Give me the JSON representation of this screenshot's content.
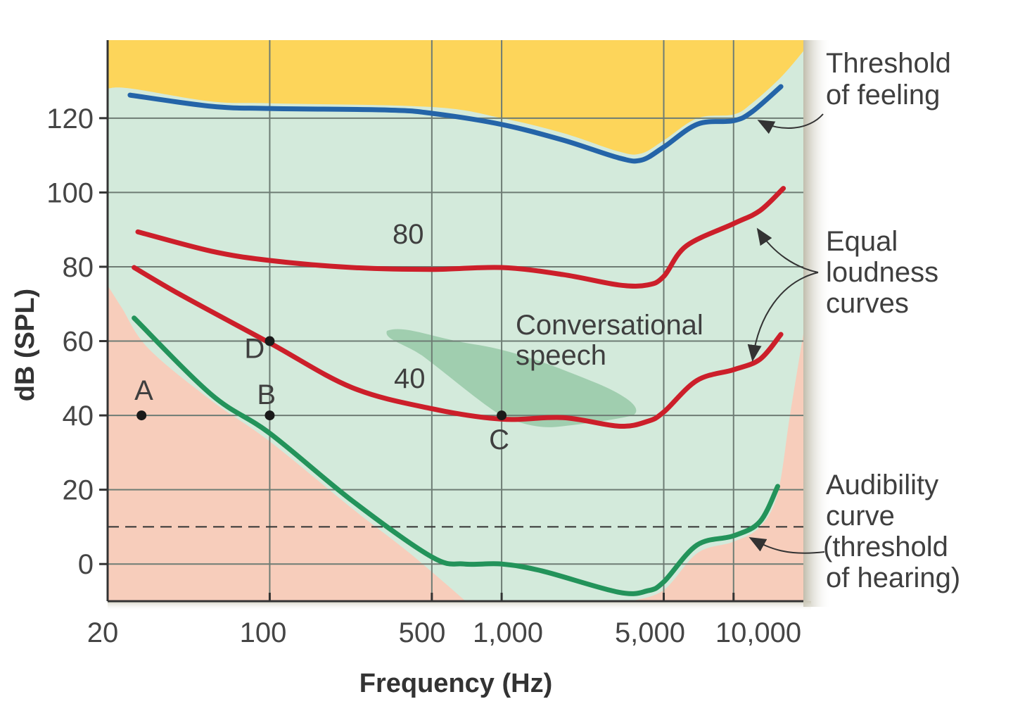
{
  "chart_data": {
    "type": "line",
    "xlabel": "Frequency (Hz)",
    "ylabel": "dB (SPL)",
    "xscale": "log",
    "xlim": [
      20,
      20000
    ],
    "ylim": [
      -10,
      141
    ],
    "grid": true,
    "x_ticks": [
      {
        "value": 20,
        "label": "20"
      },
      {
        "value": 100,
        "label": "100"
      },
      {
        "value": 500,
        "label": "500"
      },
      {
        "value": 1000,
        "label": "1,000"
      },
      {
        "value": 5000,
        "label": "5,000"
      },
      {
        "value": 10000,
        "label": "10,000"
      }
    ],
    "y_ticks": [
      {
        "value": 0,
        "label": "0"
      },
      {
        "value": 20,
        "label": "20"
      },
      {
        "value": 40,
        "label": "40"
      },
      {
        "value": 60,
        "label": "60"
      },
      {
        "value": 80,
        "label": "80"
      },
      {
        "value": 100,
        "label": "100"
      },
      {
        "value": 120,
        "label": "120"
      }
    ],
    "colors": {
      "feeling_region": "#FDD55A",
      "audible_region": "#D3EADB",
      "inaudible_region": "#F7CDBB",
      "speech_region": "#8FC4A0"
    },
    "series": [
      {
        "id": "threshold-of-feeling",
        "color": "#2464A8",
        "points": [
          [
            25,
            126.2
          ],
          [
            56,
            123.2
          ],
          [
            100,
            122.6
          ],
          [
            320,
            122.2
          ],
          [
            500,
            121.3
          ],
          [
            1000,
            118.3
          ],
          [
            1840,
            114.1
          ],
          [
            3200,
            109.3
          ],
          [
            4000,
            108.7
          ],
          [
            5000,
            112.2
          ],
          [
            7000,
            118.4
          ],
          [
            10000,
            119.3
          ],
          [
            12000,
            121.7
          ],
          [
            16000,
            128.5
          ]
        ]
      },
      {
        "id": "equal-loudness-80",
        "label": "80",
        "color": "#CC1F2A",
        "points": [
          [
            27,
            89.4
          ],
          [
            56,
            84.2
          ],
          [
            100,
            81.7
          ],
          [
            226,
            79.8
          ],
          [
            500,
            79.3
          ],
          [
            1000,
            79.8
          ],
          [
            1840,
            77.9
          ],
          [
            3200,
            75.1
          ],
          [
            4260,
            75.1
          ],
          [
            5000,
            77.4
          ],
          [
            6250,
            85.6
          ],
          [
            10000,
            91.6
          ],
          [
            13000,
            95.1
          ],
          [
            16400,
            101.1
          ]
        ]
      },
      {
        "id": "equal-loudness-40",
        "label": "40",
        "color": "#CC1F2A",
        "points": [
          [
            26,
            79.8
          ],
          [
            42,
            72.2
          ],
          [
            100,
            59.5
          ],
          [
            226,
            47.5
          ],
          [
            500,
            41.8
          ],
          [
            1000,
            39.0
          ],
          [
            1840,
            39.4
          ],
          [
            3200,
            37.1
          ],
          [
            4260,
            38.4
          ],
          [
            5000,
            40.9
          ],
          [
            6950,
            49.4
          ],
          [
            10000,
            52.3
          ],
          [
            13000,
            55.1
          ],
          [
            16000,
            61.8
          ]
        ]
      },
      {
        "id": "audibility-curve",
        "color": "#23935A",
        "points": [
          [
            26,
            66.2
          ],
          [
            56,
            45.6
          ],
          [
            100,
            35.2
          ],
          [
            226,
            17.1
          ],
          [
            500,
            1.9
          ],
          [
            690,
            0
          ],
          [
            1000,
            0
          ],
          [
            1500,
            -1.9
          ],
          [
            3200,
            -7.6
          ],
          [
            4260,
            -7.2
          ],
          [
            5000,
            -4.8
          ],
          [
            6950,
            5.1
          ],
          [
            10000,
            7.6
          ],
          [
            13000,
            11.4
          ],
          [
            15500,
            20.9
          ]
        ]
      }
    ],
    "reference_line": {
      "y": 10,
      "style": "dashed"
    },
    "labeled_points": [
      {
        "label": "A",
        "x": 28,
        "y": 40
      },
      {
        "label": "B",
        "x": 100,
        "y": 40
      },
      {
        "label": "C",
        "x": 1000,
        "y": 40
      },
      {
        "label": "D",
        "x": 100,
        "y": 60
      }
    ],
    "regions": {
      "feeling_boundary": [
        [
          20,
          128
        ],
        [
          25,
          128
        ],
        [
          56,
          124.5
        ],
        [
          100,
          124
        ],
        [
          500,
          123
        ],
        [
          1000,
          120
        ],
        [
          1840,
          116
        ],
        [
          3200,
          111
        ],
        [
          4000,
          110.5
        ],
        [
          5000,
          114
        ],
        [
          7000,
          120
        ],
        [
          10000,
          121
        ],
        [
          12000,
          124
        ],
        [
          16000,
          131
        ],
        [
          20000,
          138
        ]
      ],
      "inaudible_low_boundary": [
        [
          20,
          75
        ],
        [
          23,
          69
        ],
        [
          30,
          58
        ],
        [
          56,
          44
        ],
        [
          100,
          33
        ],
        [
          226,
          15
        ],
        [
          400,
          3
        ],
        [
          700,
          -10
        ]
      ],
      "inaudible_high_boundary": [
        [
          3600,
          -10
        ],
        [
          5000,
          -7
        ],
        [
          7000,
          3
        ],
        [
          10000,
          6
        ],
        [
          13000,
          10
        ],
        [
          15500,
          19
        ],
        [
          17500,
          40
        ],
        [
          20000,
          62
        ]
      ]
    },
    "annotations": {
      "speech": [
        "Conversational",
        "speech"
      ],
      "feeling": [
        "Threshold",
        "of feeling"
      ],
      "equal": [
        "Equal",
        "loudness",
        "curves"
      ],
      "audibility": [
        "Audibility",
        "curve",
        "(threshold",
        "of hearing)"
      ]
    }
  }
}
